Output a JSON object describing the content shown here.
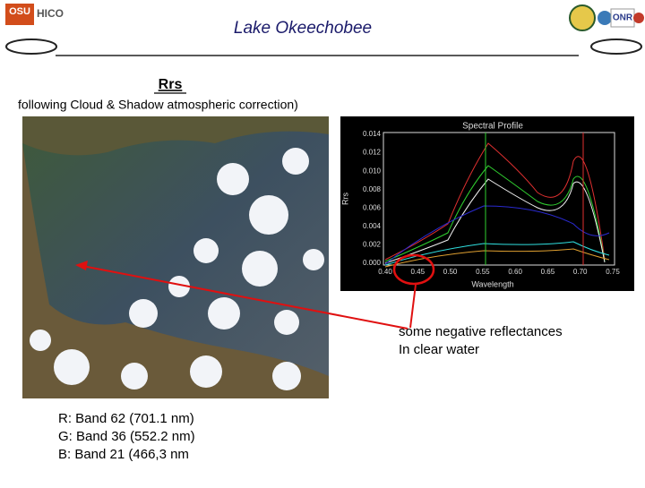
{
  "header": {
    "title": "Lake Okeechobee",
    "logo_left": [
      "OSU",
      "HICO"
    ],
    "logo_right": "ONR"
  },
  "heading": "Rrs",
  "subheading": "following Cloud & Shadow atmospheric correction)",
  "spectral_plot": {
    "title": "Spectral Profile",
    "y_label": "Rrs",
    "x_label": "Wavelength",
    "yticks": [
      "0.014",
      "0.012",
      "0.010",
      "0.008",
      "0.006",
      "0.004",
      "0.002",
      "0.000"
    ],
    "xticks": [
      "0.40",
      "0.45",
      "0.50",
      "0.55",
      "0.60",
      "0.65",
      "0.70",
      "0.75"
    ]
  },
  "annotation": [
    "some negative reflectances",
    "In clear water"
  ],
  "bands": [
    "R:  Band 62 (701.1 nm)",
    "G:  Band 36 (552.2 nm)",
    "B:  Band 21 (466,3 nm"
  ]
}
